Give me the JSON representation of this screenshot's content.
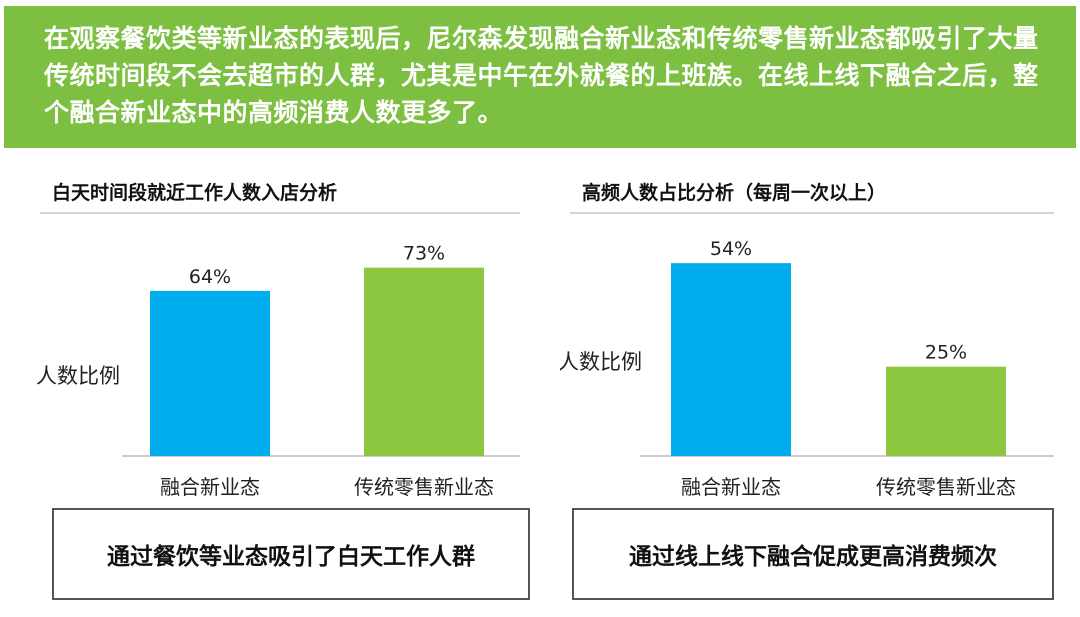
{
  "banner": {
    "text": "在观察餐饮类等新业态的表现后，尼尔森发现融合新业态和传统零售新业态都吸引了大量传统时间段不会去超市的人群，尤其是中午在外就餐的上班族。在线上线下融合之后，整个融合新业态中的高频消费人数更多了。"
  },
  "colors": {
    "banner": "#7dc041",
    "blue": "#00aeef",
    "green": "#8dc63f"
  },
  "chart_data": [
    {
      "type": "bar",
      "title": "白天时间段就近工作人数入店分析",
      "ylabel": "人数比例",
      "xlabel": "",
      "categories": [
        "融合新业态",
        "传统零售新业态"
      ],
      "values": [
        64,
        73
      ],
      "value_labels": [
        "64%",
        "73%"
      ],
      "colors": [
        "#00aeef",
        "#8dc63f"
      ],
      "ylim": [
        0,
        100
      ],
      "summary": "通过餐饮等业态吸引了白天工作人群"
    },
    {
      "type": "bar",
      "title": "高频人数占比分析（每周一次以上）",
      "ylabel": "人数比例",
      "xlabel": "",
      "categories": [
        "融合新业态",
        "传统零售新业态"
      ],
      "values": [
        54,
        25
      ],
      "value_labels": [
        "54%",
        "25%"
      ],
      "colors": [
        "#00aeef",
        "#8dc63f"
      ],
      "ylim": [
        0,
        70
      ],
      "summary": "通过线上线下融合促成更高消费频次"
    }
  ]
}
